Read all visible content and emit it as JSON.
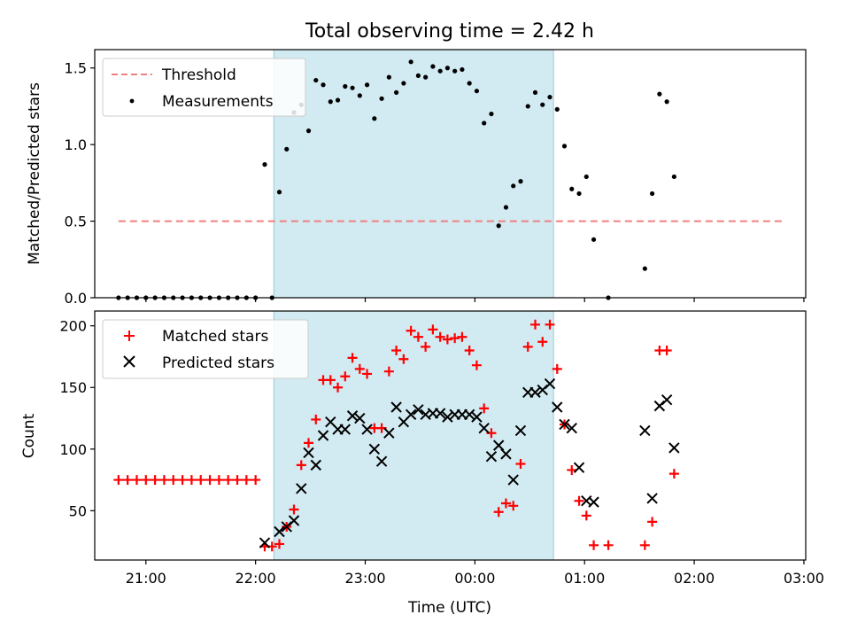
{
  "figure_title": "Total observing time = 2.42 h",
  "colors": {
    "threshold": "#f08080",
    "measurement": "#000000",
    "matched": "#ff0000",
    "predicted": "#000000",
    "shade": "#add8e6"
  },
  "chart_data": [
    {
      "type": "scatter",
      "ylabel": "Matched/Predicted stars",
      "xlabel": "",
      "xlim": [
        "20:32",
        "03:01"
      ],
      "ylim": [
        0,
        1.62
      ],
      "yticks": [
        "0.0",
        "0.5",
        "1.0",
        "1.5"
      ],
      "grid": false,
      "legend_position": "upper left",
      "shaded_region": [
        "22:10",
        "00:43"
      ],
      "threshold": {
        "name": "Threshold",
        "style": "dashed",
        "value": 0.5,
        "x_range": [
          "20:45",
          "02:48"
        ]
      },
      "series": [
        {
          "name": "Measurements",
          "marker": "dot",
          "points": [
            [
              "20:45",
              0
            ],
            [
              "20:50",
              0
            ],
            [
              "20:55",
              0
            ],
            [
              "21:00",
              0
            ],
            [
              "21:05",
              0
            ],
            [
              "21:10",
              0
            ],
            [
              "21:15",
              0
            ],
            [
              "21:20",
              0
            ],
            [
              "21:25",
              0
            ],
            [
              "21:30",
              0
            ],
            [
              "21:35",
              0
            ],
            [
              "21:40",
              0
            ],
            [
              "21:45",
              0
            ],
            [
              "21:50",
              0
            ],
            [
              "21:55",
              0
            ],
            [
              "22:00",
              0
            ],
            [
              "22:05",
              0.87
            ],
            [
              "22:09",
              0
            ],
            [
              "22:13",
              0.69
            ],
            [
              "22:17",
              0.97
            ],
            [
              "22:21",
              1.21
            ],
            [
              "22:25",
              1.26
            ],
            [
              "22:29",
              1.09
            ],
            [
              "22:33",
              1.42
            ],
            [
              "22:37",
              1.39
            ],
            [
              "22:41",
              1.28
            ],
            [
              "22:45",
              1.29
            ],
            [
              "22:49",
              1.38
            ],
            [
              "22:53",
              1.37
            ],
            [
              "22:57",
              1.32
            ],
            [
              "23:01",
              1.39
            ],
            [
              "23:05",
              1.17
            ],
            [
              "23:09",
              1.3
            ],
            [
              "23:13",
              1.44
            ],
            [
              "23:17",
              1.34
            ],
            [
              "23:21",
              1.4
            ],
            [
              "23:25",
              1.54
            ],
            [
              "23:29",
              1.45
            ],
            [
              "23:33",
              1.44
            ],
            [
              "23:37",
              1.51
            ],
            [
              "23:41",
              1.48
            ],
            [
              "23:45",
              1.5
            ],
            [
              "23:49",
              1.48
            ],
            [
              "23:53",
              1.49
            ],
            [
              "23:57",
              1.4
            ],
            [
              "00:01",
              1.35
            ],
            [
              "00:05",
              1.14
            ],
            [
              "00:09",
              1.2
            ],
            [
              "00:13",
              0.47
            ],
            [
              "00:17",
              0.59
            ],
            [
              "00:21",
              0.73
            ],
            [
              "00:25",
              0.76
            ],
            [
              "00:29",
              1.25
            ],
            [
              "00:33",
              1.34
            ],
            [
              "00:37",
              1.26
            ],
            [
              "00:41",
              1.31
            ],
            [
              "00:45",
              1.23
            ],
            [
              "00:49",
              0.99
            ],
            [
              "00:53",
              0.71
            ],
            [
              "00:57",
              0.68
            ],
            [
              "01:01",
              0.79
            ],
            [
              "01:05",
              0.38
            ],
            [
              "01:13",
              0
            ],
            [
              "01:33",
              0.19
            ],
            [
              "01:37",
              0.68
            ],
            [
              "01:41",
              1.33
            ],
            [
              "01:45",
              1.28
            ],
            [
              "01:49",
              0.79
            ]
          ]
        }
      ]
    },
    {
      "type": "scatter",
      "ylabel": "Count",
      "xlabel": "Time (UTC)",
      "xlim": [
        "20:32",
        "03:01"
      ],
      "ylim": [
        10,
        212
      ],
      "yticks": [
        "50",
        "100",
        "150",
        "200"
      ],
      "xticks": [
        "21:00",
        "22:00",
        "23:00",
        "00:00",
        "01:00",
        "02:00",
        "03:00"
      ],
      "grid": false,
      "legend_position": "upper left",
      "shaded_region": [
        "22:10",
        "00:43"
      ],
      "series": [
        {
          "name": "Matched stars",
          "marker": "plus",
          "points": [
            [
              "20:45",
              75
            ],
            [
              "20:50",
              75
            ],
            [
              "20:55",
              75
            ],
            [
              "21:00",
              75
            ],
            [
              "21:05",
              75
            ],
            [
              "21:10",
              75
            ],
            [
              "21:15",
              75
            ],
            [
              "21:20",
              75
            ],
            [
              "21:25",
              75
            ],
            [
              "21:30",
              75
            ],
            [
              "21:35",
              75
            ],
            [
              "21:40",
              75
            ],
            [
              "21:45",
              75
            ],
            [
              "21:50",
              75
            ],
            [
              "21:55",
              75
            ],
            [
              "22:00",
              75
            ],
            [
              "22:05",
              21
            ],
            [
              "22:09",
              21
            ],
            [
              "22:13",
              23
            ],
            [
              "22:17",
              37
            ],
            [
              "22:21",
              51
            ],
            [
              "22:25",
              87
            ],
            [
              "22:29",
              105
            ],
            [
              "22:33",
              124
            ],
            [
              "22:37",
              156
            ],
            [
              "22:41",
              156
            ],
            [
              "22:45",
              150
            ],
            [
              "22:49",
              159
            ],
            [
              "22:53",
              174
            ],
            [
              "22:57",
              165
            ],
            [
              "23:01",
              161
            ],
            [
              "23:05",
              117
            ],
            [
              "23:09",
              117
            ],
            [
              "23:13",
              163
            ],
            [
              "23:17",
              180
            ],
            [
              "23:21",
              173
            ],
            [
              "23:25",
              196
            ],
            [
              "23:29",
              191
            ],
            [
              "23:33",
              183
            ],
            [
              "23:37",
              197
            ],
            [
              "23:41",
              191
            ],
            [
              "23:45",
              189
            ],
            [
              "23:49",
              190
            ],
            [
              "23:53",
              191
            ],
            [
              "23:57",
              180
            ],
            [
              "00:01",
              168
            ],
            [
              "00:05",
              133
            ],
            [
              "00:09",
              113
            ],
            [
              "00:13",
              49
            ],
            [
              "00:17",
              56
            ],
            [
              "00:21",
              54
            ],
            [
              "00:25",
              88
            ],
            [
              "00:29",
              183
            ],
            [
              "00:33",
              201
            ],
            [
              "00:37",
              187
            ],
            [
              "00:41",
              201
            ],
            [
              "00:45",
              165
            ],
            [
              "00:49",
              120
            ],
            [
              "00:53",
              83
            ],
            [
              "00:57",
              58
            ],
            [
              "01:01",
              46
            ],
            [
              "01:05",
              22
            ],
            [
              "01:13",
              22
            ],
            [
              "01:33",
              22
            ],
            [
              "01:37",
              41
            ],
            [
              "01:41",
              180
            ],
            [
              "01:45",
              180
            ],
            [
              "01:49",
              80
            ]
          ]
        },
        {
          "name": "Predicted stars",
          "marker": "x",
          "points": [
            [
              "22:05",
              24
            ],
            [
              "22:13",
              33
            ],
            [
              "22:17",
              37
            ],
            [
              "22:21",
              42
            ],
            [
              "22:25",
              68
            ],
            [
              "22:29",
              97
            ],
            [
              "22:33",
              87
            ],
            [
              "22:37",
              111
            ],
            [
              "22:41",
              122
            ],
            [
              "22:45",
              116
            ],
            [
              "22:49",
              116
            ],
            [
              "22:53",
              127
            ],
            [
              "22:57",
              125
            ],
            [
              "23:01",
              116
            ],
            [
              "23:05",
              100
            ],
            [
              "23:09",
              90
            ],
            [
              "23:13",
              113
            ],
            [
              "23:17",
              134
            ],
            [
              "23:21",
              122
            ],
            [
              "23:25",
              128
            ],
            [
              "23:29",
              132
            ],
            [
              "23:33",
              128
            ],
            [
              "23:37",
              129
            ],
            [
              "23:41",
              129
            ],
            [
              "23:45",
              126
            ],
            [
              "23:49",
              128
            ],
            [
              "23:53",
              128
            ],
            [
              "23:57",
              128
            ],
            [
              "00:01",
              126
            ],
            [
              "00:05",
              117
            ],
            [
              "00:09",
              94
            ],
            [
              "00:13",
              103
            ],
            [
              "00:17",
              96
            ],
            [
              "00:21",
              75
            ],
            [
              "00:25",
              115
            ],
            [
              "00:29",
              146
            ],
            [
              "00:33",
              146
            ],
            [
              "00:37",
              148
            ],
            [
              "00:41",
              153
            ],
            [
              "00:45",
              134
            ],
            [
              "00:49",
              120
            ],
            [
              "00:53",
              117
            ],
            [
              "00:57",
              85
            ],
            [
              "01:01",
              58
            ],
            [
              "01:05",
              57
            ],
            [
              "01:33",
              115
            ],
            [
              "01:37",
              60
            ],
            [
              "01:41",
              135
            ],
            [
              "01:45",
              140
            ],
            [
              "01:49",
              101
            ]
          ]
        }
      ]
    }
  ]
}
